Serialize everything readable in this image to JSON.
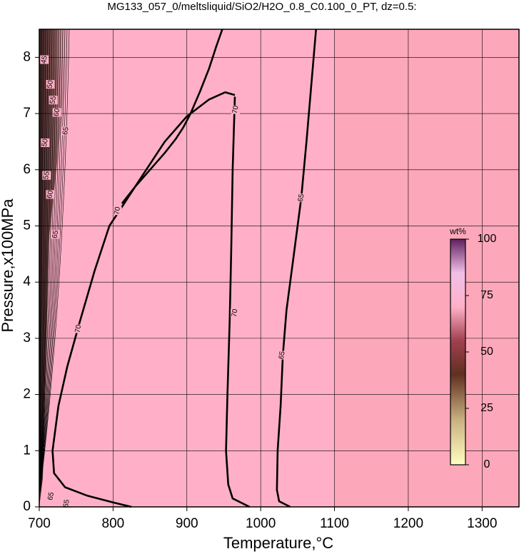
{
  "chart_data": {
    "type": "contour",
    "title": "MG133_057_0/meltsliquid/SiO2/H2O_0.8_C0.100_0_PT, dz=0.5:",
    "x_label": "Temperature,°C",
    "y_label": "Pressure,x100MPa",
    "xlim": [
      700,
      1350
    ],
    "ylim": [
      0,
      8.5
    ],
    "xticks": [
      700,
      800,
      900,
      1000,
      1100,
      1200,
      1300
    ],
    "yticks": [
      0,
      1,
      2,
      3,
      4,
      5,
      6,
      7,
      8
    ],
    "grid": true,
    "color": "#ffb0c8",
    "colorbar": {
      "label": "wt%",
      "lim": [
        0,
        100
      ],
      "ticks": [
        0,
        25,
        50,
        75,
        100
      ]
    },
    "contours": [
      {
        "level": 65,
        "x": [
          1075,
          1062,
          1055,
          1045,
          1035,
          1030,
          1027,
          1023,
          1022,
          1025,
          1040
        ],
        "y": [
          8.5,
          6.5,
          5.5,
          4.5,
          3.5,
          2.7,
          1.8,
          1.0,
          0.3,
          0.1,
          0
        ]
      },
      {
        "level": 70,
        "x": [
          965,
          962,
          960,
          958,
          955,
          953,
          956,
          962,
          985
        ],
        "y": [
          7.3,
          6.0,
          4.5,
          3.3,
          2.0,
          1.0,
          0.4,
          0.15,
          0
        ]
      },
      {
        "level": 70,
        "x": [
          795,
          815,
          840,
          870,
          900,
          930,
          952,
          965
        ],
        "y": [
          5.0,
          5.4,
          5.9,
          6.5,
          6.95,
          7.25,
          7.38,
          7.33
        ]
      },
      {
        "level": 70,
        "x": [
          795,
          775,
          755,
          738,
          726,
          718,
          720,
          735,
          765,
          800,
          825
        ],
        "y": [
          5.0,
          4.2,
          3.3,
          2.5,
          1.8,
          1.0,
          0.6,
          0.35,
          0.2,
          0.08,
          0
        ]
      },
      {
        "level": 70,
        "x": [
          812,
          830,
          850,
          870,
          885,
          895,
          905,
          918,
          930,
          940,
          948
        ],
        "y": [
          5.4,
          5.7,
          6.0,
          6.3,
          6.55,
          6.75,
          7.0,
          7.4,
          7.8,
          8.2,
          8.5
        ]
      }
    ],
    "contour_labels": [
      {
        "text": "70",
        "x": 966,
        "y": 7.07
      },
      {
        "text": "70",
        "x": 965,
        "y": 3.45
      },
      {
        "text": "65",
        "x": 1055,
        "y": 5.5
      },
      {
        "text": "65",
        "x": 1029,
        "y": 2.7
      },
      {
        "text": "70",
        "x": 753,
        "y": 3.17
      },
      {
        "text": "70",
        "x": 806,
        "y": 5.27
      },
      {
        "text": "45",
        "x": 707,
        "y": 7.96
      },
      {
        "text": "50",
        "x": 715,
        "y": 7.52
      },
      {
        "text": "55",
        "x": 719,
        "y": 7.24
      },
      {
        "text": "60",
        "x": 724,
        "y": 7.02
      },
      {
        "text": "65",
        "x": 736,
        "y": 6.69
      },
      {
        "text": "50",
        "x": 708,
        "y": 6.48
      },
      {
        "text": "55",
        "x": 710,
        "y": 5.9
      },
      {
        "text": "60",
        "x": 715,
        "y": 5.56
      },
      {
        "text": "65",
        "x": 722,
        "y": 4.85
      },
      {
        "text": "65",
        "x": 716,
        "y": 0.19
      },
      {
        "text": "65",
        "x": 737,
        "y": 0.06
      }
    ]
  }
}
